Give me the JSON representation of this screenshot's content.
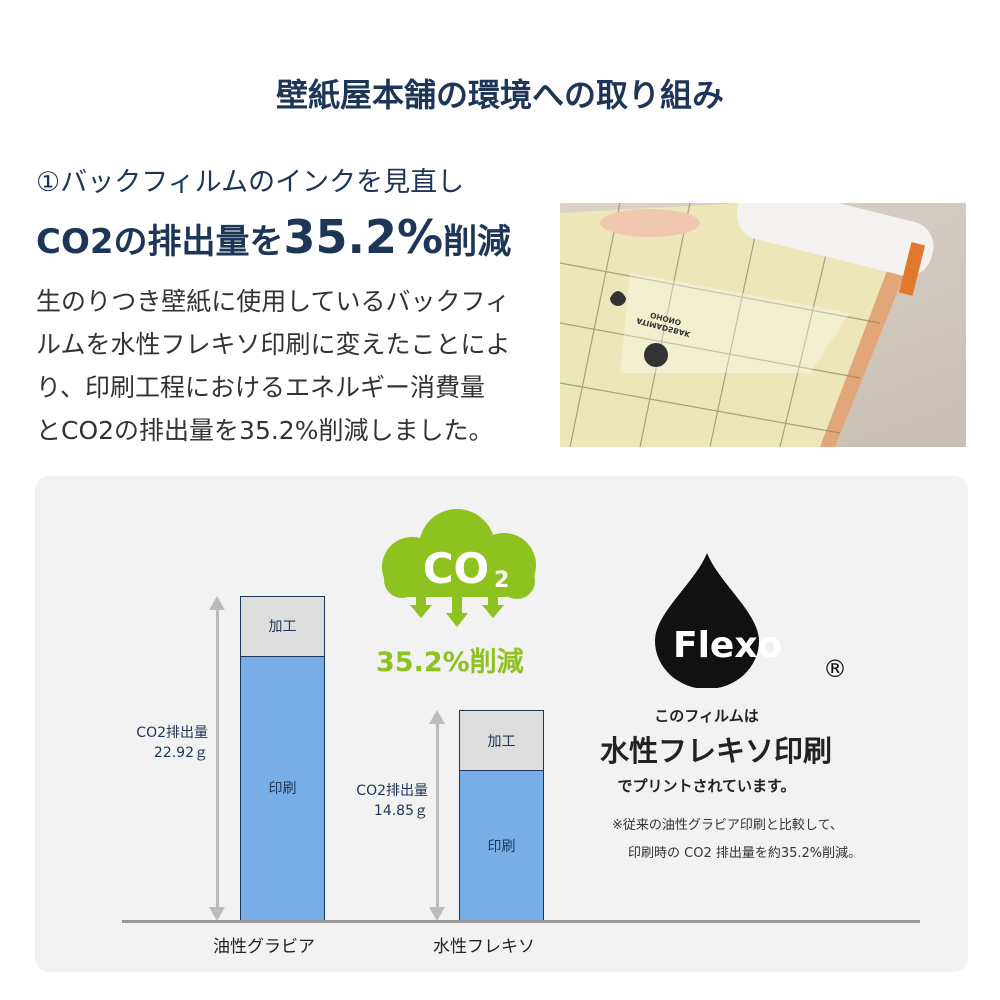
{
  "title": "壁紙屋本舗の環境への取り組み",
  "section": {
    "subtitle": "①バックフィルムのインクを見直し",
    "headline_prefix": "CO2の排出量を",
    "headline_value": "35.2%",
    "headline_suffix": "削減",
    "paragraph_lines": [
      "生のりつき壁紙に使用しているバックフィ",
      "ルムを水性フレキソ印刷に変えたことによ",
      "り、印刷工程におけるエネルギー消費量",
      "とCO2の排出量を35.2%削減しました。"
    ]
  },
  "photo": {
    "alt_text_in_image": [
      "ATIMADSBAK",
      "OHONO"
    ]
  },
  "chart_data": {
    "type": "bar",
    "stacked": true,
    "categories": [
      "油性グラビア",
      "水性フレキソ"
    ],
    "segment_labels": {
      "processing": "加工",
      "printing": "印刷"
    },
    "value_label": "CO2排出量",
    "values": [
      22.92,
      14.85
    ],
    "value_texts": [
      "22.92ｇ",
      "14.85ｇ"
    ],
    "colors": {
      "printing": "#78aee8",
      "processing": "#dddddd",
      "axis": "#999999"
    }
  },
  "co2_badge": {
    "text": "CO",
    "subscript": "2",
    "reduction": "35.2%削減",
    "color": "#8dc21f"
  },
  "flexo": {
    "logo_text": "Flexo",
    "registered": "®",
    "line1": "このフィルムは",
    "line2": "水性フレキソ印刷",
    "line3": "でプリントされています。",
    "note1": "※従来の油性グラビア印刷と比較して、",
    "note2": "印刷時の CO2 排出量を約35.2%削減。"
  }
}
